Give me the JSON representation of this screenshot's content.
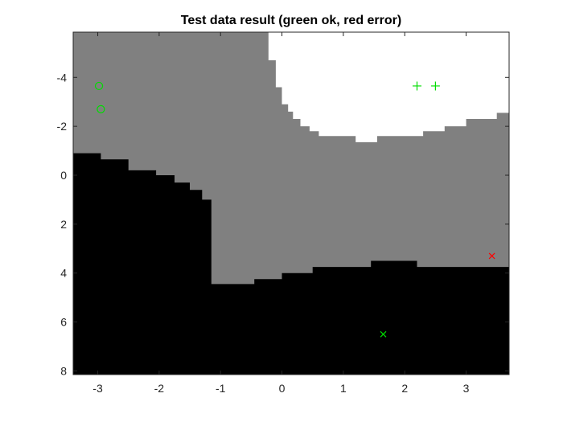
{
  "chart_data": {
    "type": "scatter",
    "title": "Test data result (green ok, red error)",
    "xlabel": "",
    "ylabel": "",
    "xlim": [
      -3.4,
      3.7
    ],
    "ylim": [
      -5.85,
      8.15
    ],
    "y_reversed": true,
    "grid": false,
    "xticks": [
      -3,
      -2,
      -1,
      0,
      1,
      2,
      3
    ],
    "yticks": [
      -4,
      -2,
      0,
      2,
      4,
      6,
      8
    ],
    "xtick_labels": [
      "-3",
      "-2",
      "-1",
      "0",
      "1",
      "2",
      "3"
    ],
    "ytick_labels": [
      "-4",
      "-2",
      "0",
      "2",
      "4",
      "6",
      "8"
    ],
    "colors": {
      "region_white": "#ffffff",
      "region_gray": "#808080",
      "region_black": "#000000",
      "ok": "#00dd00",
      "error": "#ff0000"
    },
    "regions": {
      "white_boundary": [
        [
          -0.22,
          -5.85
        ],
        [
          -0.22,
          -4.7
        ],
        [
          -0.1,
          -4.7
        ],
        [
          -0.1,
          -3.6
        ],
        [
          0.0,
          -3.6
        ],
        [
          0.0,
          -2.9
        ],
        [
          0.1,
          -2.9
        ],
        [
          0.1,
          -2.6
        ],
        [
          0.18,
          -2.6
        ],
        [
          0.18,
          -2.3
        ],
        [
          0.3,
          -2.3
        ],
        [
          0.3,
          -2.0
        ],
        [
          0.45,
          -2.0
        ],
        [
          0.45,
          -1.8
        ],
        [
          0.6,
          -1.8
        ],
        [
          0.6,
          -1.6
        ],
        [
          1.2,
          -1.6
        ],
        [
          1.2,
          -1.35
        ],
        [
          1.55,
          -1.35
        ],
        [
          1.55,
          -1.6
        ],
        [
          2.3,
          -1.6
        ],
        [
          2.3,
          -1.8
        ],
        [
          2.65,
          -1.8
        ],
        [
          2.65,
          -2.0
        ],
        [
          3.0,
          -2.0
        ],
        [
          3.0,
          -2.3
        ],
        [
          3.5,
          -2.3
        ],
        [
          3.5,
          -2.55
        ],
        [
          3.7,
          -2.55
        ],
        [
          3.7,
          -5.85
        ]
      ],
      "black_boundary": [
        [
          -3.4,
          0.95
        ],
        [
          -3.4,
          8.15
        ],
        [
          3.7,
          8.15
        ],
        [
          3.7,
          3.75
        ],
        [
          2.2,
          3.75
        ],
        [
          2.2,
          3.5
        ],
        [
          1.45,
          3.5
        ],
        [
          1.45,
          3.75
        ],
        [
          0.5,
          3.75
        ],
        [
          0.5,
          4.0
        ],
        [
          0.0,
          4.0
        ],
        [
          0.0,
          4.25
        ],
        [
          -0.45,
          4.25
        ],
        [
          -0.45,
          4.45
        ],
        [
          -1.15,
          4.45
        ],
        [
          -1.15,
          1.0
        ],
        [
          -1.3,
          1.0
        ],
        [
          -1.3,
          0.6
        ],
        [
          -1.5,
          0.6
        ],
        [
          -1.5,
          0.3
        ],
        [
          -1.75,
          0.3
        ],
        [
          -1.75,
          0.0
        ],
        [
          -2.05,
          0.0
        ],
        [
          -2.05,
          -0.2
        ],
        [
          -2.5,
          -0.2
        ],
        [
          -2.5,
          -0.65
        ],
        [
          -2.95,
          -0.65
        ],
        [
          -2.95,
          -0.9
        ],
        [
          -3.4,
          -0.9
        ]
      ]
    },
    "series": [
      {
        "marker": "circle",
        "result": "ok",
        "points": [
          [
            -2.98,
            -3.65
          ],
          [
            -2.95,
            -2.7
          ]
        ]
      },
      {
        "marker": "plus",
        "result": "ok",
        "points": [
          [
            2.2,
            -3.65
          ],
          [
            2.5,
            -3.65
          ]
        ]
      },
      {
        "marker": "x",
        "result": "ok",
        "points": [
          [
            1.65,
            6.5
          ]
        ]
      },
      {
        "marker": "x",
        "result": "error",
        "points": [
          [
            3.42,
            3.3
          ]
        ]
      }
    ]
  }
}
